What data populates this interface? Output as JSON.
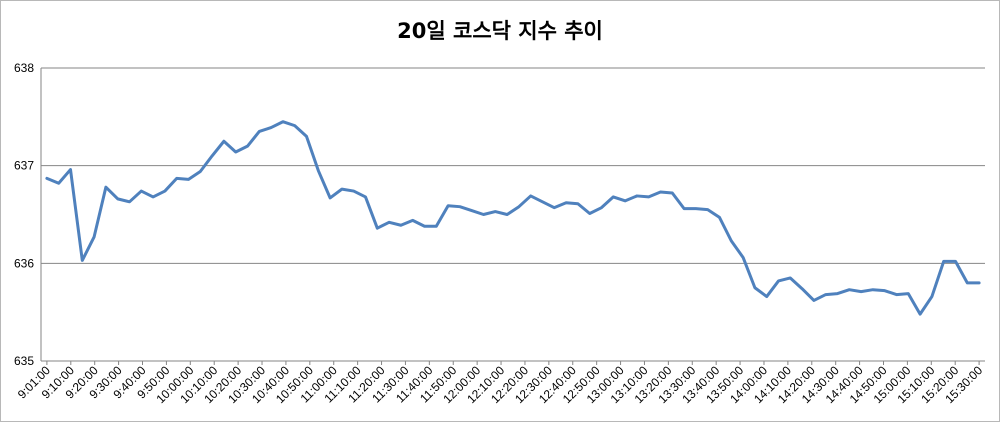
{
  "chart_data": {
    "type": "line",
    "title": "20일 코스닥 지수 추이",
    "xlabel": "",
    "ylabel": "",
    "ylim": [
      635,
      638
    ],
    "yticks": [
      635,
      636,
      637,
      638
    ],
    "grid": true,
    "legend": "none",
    "line_color": "#4f81bd",
    "x_tick_labels": [
      "9:01:00",
      "9:10:00",
      "9:20:00",
      "9:30:00",
      "9:40:00",
      "9:50:00",
      "10:00:00",
      "10:10:00",
      "10:20:00",
      "10:30:00",
      "10:40:00",
      "10:50:00",
      "11:00:00",
      "11:10:00",
      "11:20:00",
      "11:30:00",
      "11:40:00",
      "11:50:00",
      "12:00:00",
      "12:10:00",
      "12:20:00",
      "12:30:00",
      "12:40:00",
      "12:50:00",
      "13:00:00",
      "13:10:00",
      "13:20:00",
      "13:30:00",
      "13:40:00",
      "13:50:00",
      "14:00:00",
      "14:10:00",
      "14:20:00",
      "14:30:00",
      "14:40:00",
      "14:50:00",
      "15:00:00",
      "15:10:00",
      "15:20:00",
      "15:30:00"
    ],
    "series": [
      {
        "values": [
          636.87,
          636.82,
          636.96,
          636.03,
          636.27,
          636.78,
          636.66,
          636.63,
          636.74,
          636.68,
          636.74,
          636.87,
          636.86,
          636.94,
          637.1,
          637.25,
          637.14,
          637.2,
          637.35,
          637.39,
          637.45,
          637.41,
          637.3,
          636.95,
          636.67,
          636.76,
          636.74,
          636.68,
          636.36,
          636.42,
          636.39,
          636.44,
          636.38,
          636.38,
          636.59,
          636.58,
          636.54,
          636.5,
          636.53,
          636.5,
          636.58,
          636.69,
          636.63,
          636.57,
          636.62,
          636.61,
          636.51,
          636.57,
          636.68,
          636.64,
          636.69,
          636.68,
          636.73,
          636.72,
          636.56,
          636.56,
          636.55,
          636.47,
          636.23,
          636.06,
          635.75,
          635.66,
          635.82,
          635.85,
          635.74,
          635.62,
          635.68,
          635.69,
          635.73,
          635.71,
          635.73,
          635.72,
          635.68,
          635.69,
          635.48,
          635.66,
          636.02,
          636.02,
          635.8,
          635.8
        ]
      }
    ]
  }
}
